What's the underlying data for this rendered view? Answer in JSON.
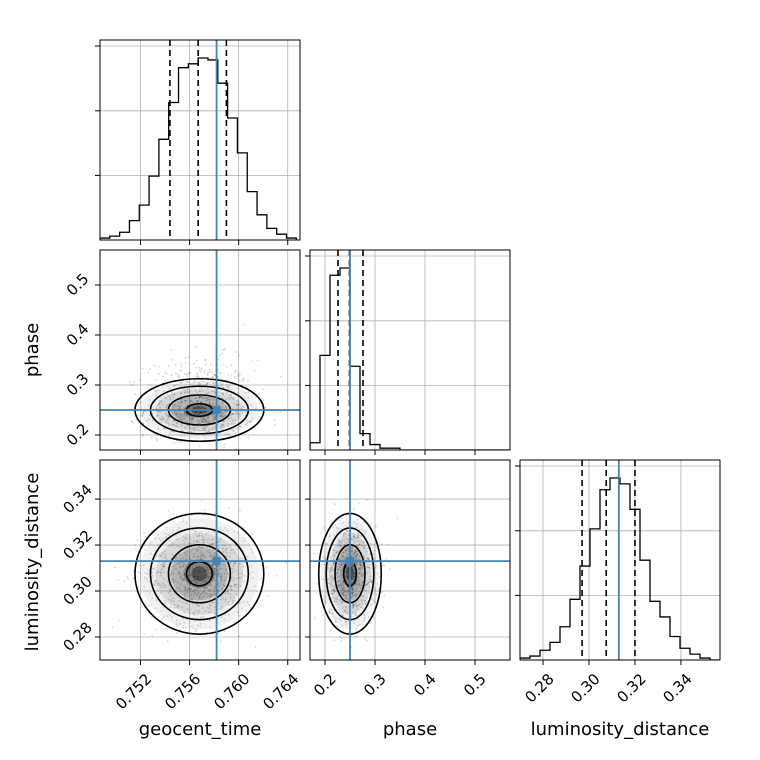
{
  "chart_data": {
    "type": "corner",
    "parameters": [
      "geocent_time",
      "phase",
      "luminosity_distance"
    ],
    "truths": {
      "geocent_time": 0.7582,
      "phase": 0.25,
      "luminosity_distance": 0.313
    },
    "colors": {
      "truth": "#4682b4",
      "hist": "#000000",
      "grid": "#b0b0b0",
      "points": "#000000"
    },
    "grid": true,
    "axes": {
      "geocent_time": {
        "range": [
          0.7487,
          0.765
        ],
        "ticks": [
          "0.752",
          "0.756",
          "0.760",
          "0.764"
        ]
      },
      "phase": {
        "range": [
          0.17,
          0.57
        ],
        "ticks": [
          "0.2",
          "0.3",
          "0.4",
          "0.5"
        ]
      },
      "luminosity_distance": {
        "range": [
          0.27,
          0.357
        ],
        "ticks": [
          "0.28",
          "0.30",
          "0.32",
          "0.34"
        ]
      }
    },
    "quantiles": {
      "geocent_time": [
        0.7544,
        0.7567,
        0.759
      ],
      "phase": [
        0.226,
        0.249,
        0.276
      ],
      "luminosity_distance": [
        0.297,
        0.3075,
        0.32
      ]
    },
    "histograms": {
      "geocent_time": {
        "bin_edges_from": 0.7487,
        "bin_width": 0.0008,
        "counts": [
          1,
          2,
          4,
          10,
          18,
          33,
          52,
          71,
          89,
          91,
          94,
          93,
          81,
          63,
          45,
          25,
          13,
          6,
          3,
          1
        ]
      },
      "phase": {
        "bin_edges_from": 0.17,
        "bin_width": 0.02,
        "counts": [
          4,
          52,
          96,
          100,
          46,
          9,
          3,
          1,
          1,
          0,
          0,
          0,
          0,
          0,
          0,
          0,
          0,
          0,
          0,
          0
        ]
      },
      "luminosity_distance": {
        "bin_edges_from": 0.27,
        "bin_width": 0.00435,
        "counts": [
          1,
          2,
          5,
          9,
          17,
          31,
          48,
          67,
          87,
          93,
          90,
          77,
          51,
          30,
          22,
          12,
          6,
          3,
          1,
          0
        ]
      }
    },
    "posterior": {
      "means": {
        "geocent_time": 0.7568,
        "phase": 0.25,
        "luminosity_distance": 0.3075
      },
      "sigmas": {
        "geocent_time": 0.0021,
        "phase": 0.025,
        "luminosity_distance": 0.0105
      }
    }
  }
}
